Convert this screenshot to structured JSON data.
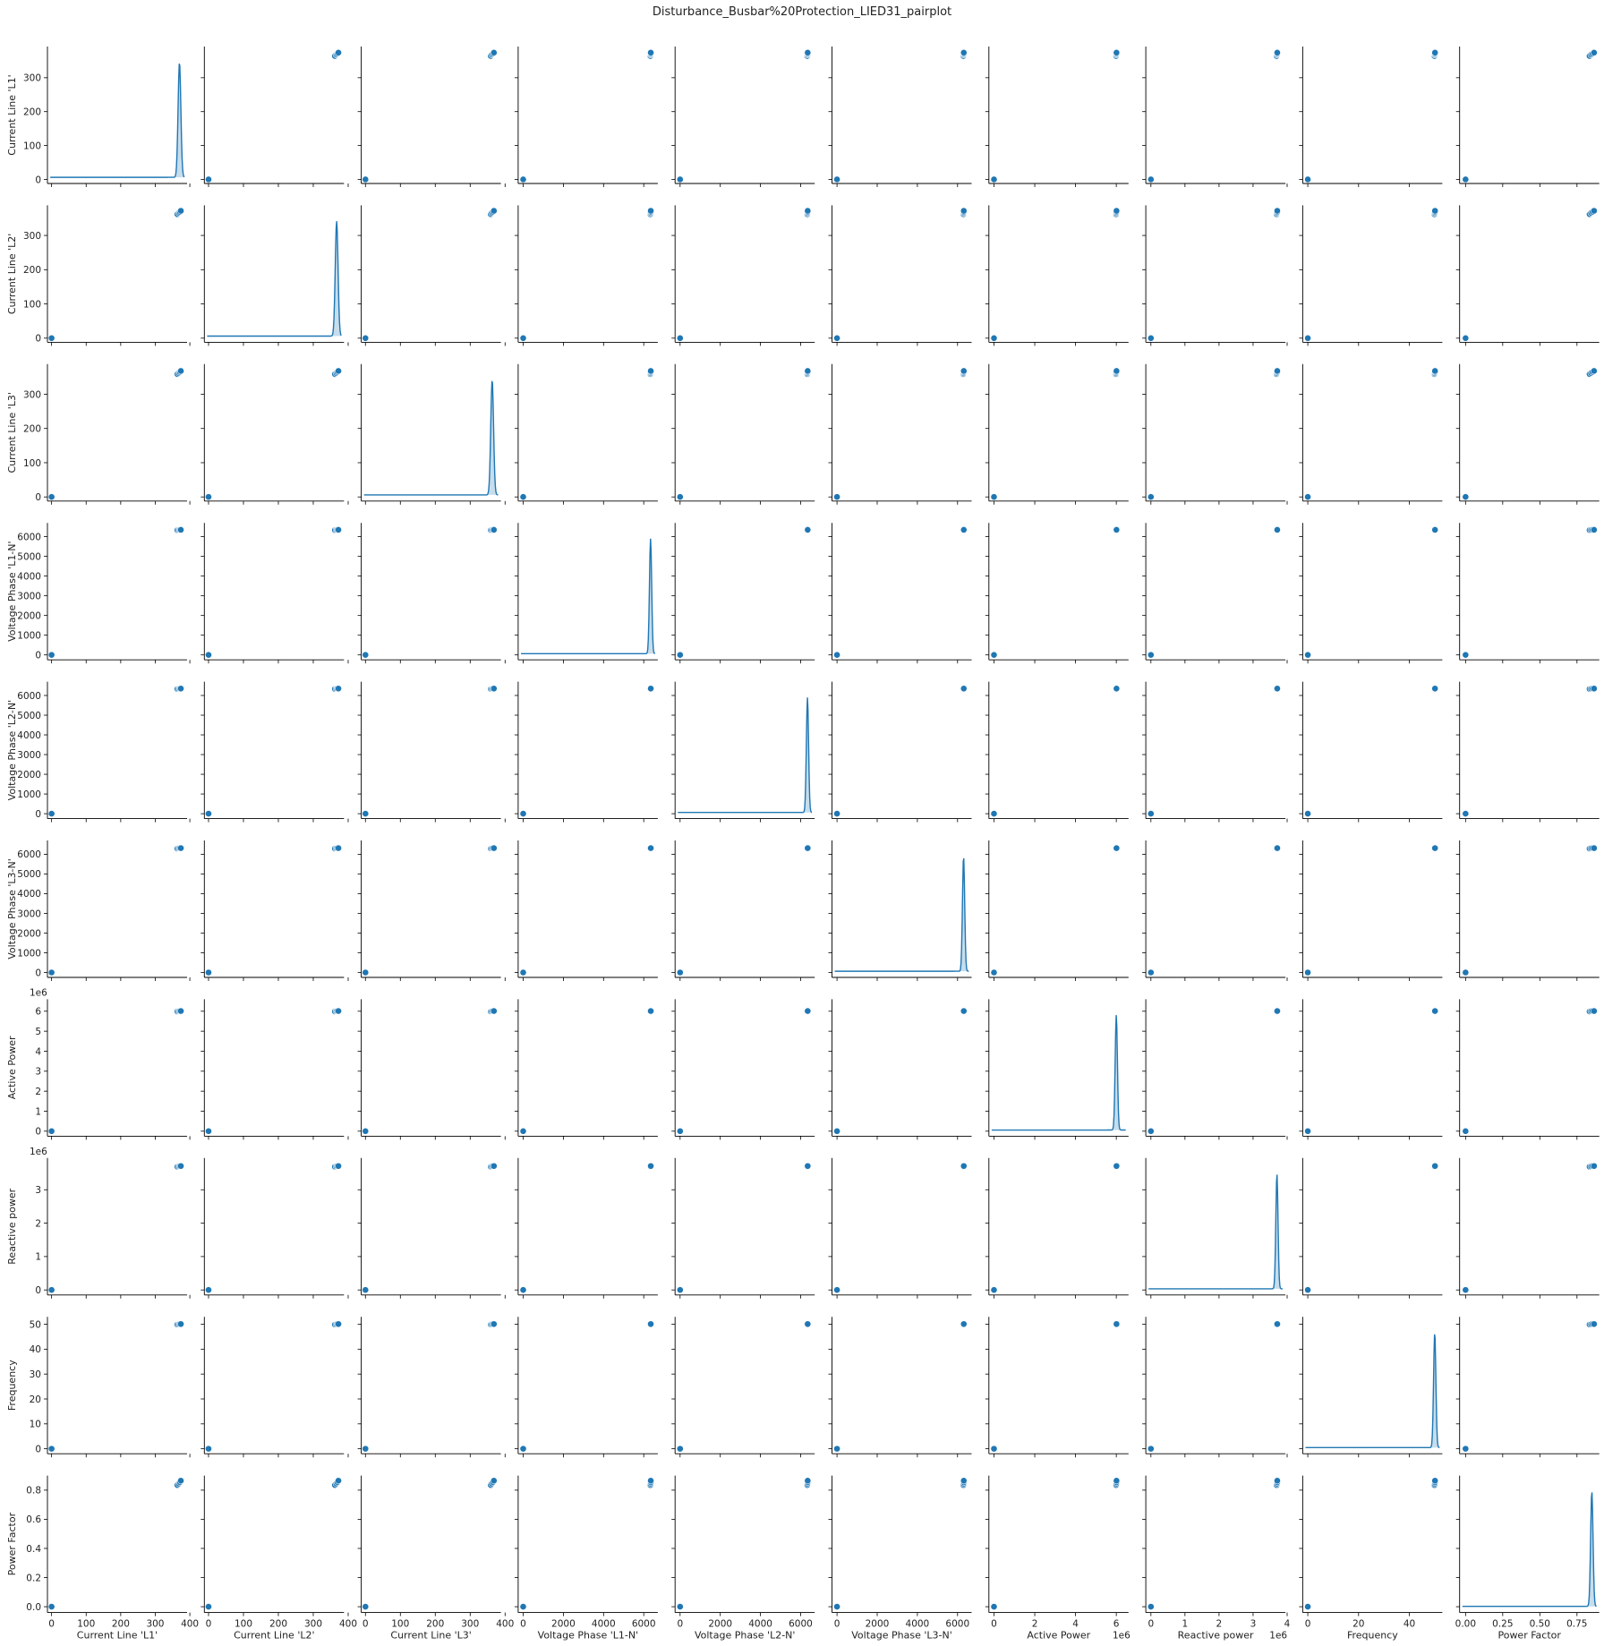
{
  "chart_data": {
    "type": "scatter",
    "subtype": "pairplot",
    "title": "Disturbance_Busbar%20Protection_LIED31_pairplot",
    "diagonal": "kde",
    "grid": false,
    "color": "#1f77b4",
    "variables": [
      {
        "name": "Current Line 'L1'",
        "range": [
          -12,
          392
        ],
        "ticks": [
          0,
          100,
          200,
          300,
          400
        ],
        "tick_labels": [
          "0",
          "100",
          "200",
          "300",
          "400"
        ],
        "y_ticks": [
          0,
          100,
          200,
          300
        ],
        "y_tick_labels": [
          "0",
          "100",
          "200",
          "300"
        ],
        "offset_label": "",
        "points": [
          0,
          364,
          368,
          371,
          374
        ],
        "kde_peak": 370,
        "kde_sd": 4
      },
      {
        "name": "Current Line 'L2'",
        "range": [
          -12,
          388
        ],
        "ticks": [
          0,
          100,
          200,
          300,
          400
        ],
        "tick_labels": [
          "0",
          "100",
          "200",
          "300",
          "400"
        ],
        "y_ticks": [
          0,
          100,
          200,
          300
        ],
        "y_tick_labels": [
          "0",
          "100",
          "200",
          "300"
        ],
        "offset_label": "",
        "points": [
          0,
          362,
          366,
          369,
          372
        ],
        "kde_peak": 367,
        "kde_sd": 4
      },
      {
        "name": "Current Line 'L3'",
        "range": [
          -12,
          388
        ],
        "ticks": [
          0,
          100,
          200,
          300,
          400
        ],
        "tick_labels": [
          "0",
          "100",
          "200",
          "300",
          "400"
        ],
        "y_ticks": [
          0,
          100,
          200,
          300
        ],
        "y_tick_labels": [
          "0",
          "100",
          "200",
          "300"
        ],
        "offset_label": "",
        "points": [
          0,
          359,
          362,
          365,
          368
        ],
        "kde_peak": 363,
        "kde_sd": 4
      },
      {
        "name": "Voltage Phase 'L1-N'",
        "range": [
          -250,
          6700
        ],
        "ticks": [
          0,
          2000,
          4000,
          6000
        ],
        "tick_labels": [
          "0",
          "2000",
          "4000",
          "6000"
        ],
        "y_ticks": [
          0,
          1000,
          2000,
          3000,
          4000,
          5000,
          6000
        ],
        "y_tick_labels": [
          "0",
          "1000",
          "2000",
          "3000",
          "4000",
          "5000",
          "6000"
        ],
        "offset_label": "",
        "points": [
          0,
          6330,
          6340,
          6350
        ],
        "kde_peak": 6340,
        "kde_sd": 55
      },
      {
        "name": "Voltage Phase 'L2-N'",
        "range": [
          -250,
          6700
        ],
        "ticks": [
          0,
          2000,
          4000,
          6000
        ],
        "tick_labels": [
          "0",
          "2000",
          "4000",
          "6000"
        ],
        "y_ticks": [
          0,
          1000,
          2000,
          3000,
          4000,
          5000,
          6000
        ],
        "y_tick_labels": [
          "0",
          "1000",
          "2000",
          "3000",
          "4000",
          "5000",
          "6000"
        ],
        "offset_label": "",
        "points": [
          0,
          6330,
          6340,
          6350
        ],
        "kde_peak": 6340,
        "kde_sd": 55
      },
      {
        "name": "Voltage Phase 'L3-N'",
        "range": [
          -250,
          6700
        ],
        "ticks": [
          0,
          2000,
          4000,
          6000
        ],
        "tick_labels": [
          "0",
          "2000",
          "4000",
          "6000"
        ],
        "y_ticks": [
          0,
          1000,
          2000,
          3000,
          4000,
          5000,
          6000
        ],
        "y_tick_labels": [
          "0",
          "1000",
          "2000",
          "3000",
          "4000",
          "5000",
          "6000"
        ],
        "offset_label": "",
        "points": [
          0,
          6290,
          6300,
          6310
        ],
        "kde_peak": 6300,
        "kde_sd": 55
      },
      {
        "name": "Active Power",
        "range": [
          -250000,
          6600000
        ],
        "ticks": [
          0,
          2000000,
          4000000,
          6000000
        ],
        "tick_labels": [
          "0",
          "2",
          "4",
          "6"
        ],
        "y_ticks": [
          0,
          1000000,
          2000000,
          3000000,
          4000000,
          5000000,
          6000000
        ],
        "y_tick_labels": [
          "0",
          "1",
          "2",
          "3",
          "4",
          "5",
          "6"
        ],
        "offset_label": "1e6",
        "points": [
          0,
          5990000,
          6000000,
          6010000
        ],
        "kde_peak": 6000000,
        "kde_sd": 55000
      },
      {
        "name": "Reactive power",
        "range": [
          -150000,
          3950000
        ],
        "ticks": [
          0,
          1000000,
          2000000,
          3000000,
          4000000
        ],
        "tick_labels": [
          "0",
          "1",
          "2",
          "3",
          "4"
        ],
        "y_ticks": [
          0,
          1000000,
          2000000,
          3000000
        ],
        "y_tick_labels": [
          "0",
          "1",
          "2",
          "3"
        ],
        "offset_label": "1e6",
        "points": [
          0,
          3690000,
          3700000,
          3710000
        ],
        "kde_peak": 3700000,
        "kde_sd": 32000
      },
      {
        "name": "Frequency",
        "range": [
          -2,
          53
        ],
        "ticks": [
          0,
          20,
          40
        ],
        "tick_labels": [
          "0",
          "20",
          "40"
        ],
        "y_ticks": [
          0,
          10,
          20,
          30,
          40,
          50
        ],
        "y_tick_labels": [
          "0",
          "10",
          "20",
          "30",
          "40",
          "50"
        ],
        "offset_label": "",
        "points": [
          0,
          49.9,
          50.0,
          50.1
        ],
        "kde_peak": 50,
        "kde_sd": 0.45
      },
      {
        "name": "Power Factor",
        "range": [
          -0.04,
          0.9
        ],
        "ticks": [
          0,
          0.25,
          0.5,
          0.75
        ],
        "tick_labels": [
          "0.00",
          "0.25",
          "0.50",
          "0.75"
        ],
        "y_ticks": [
          0,
          0.2,
          0.4,
          0.6,
          0.8
        ],
        "y_tick_labels": [
          "0.0",
          "0.2",
          "0.4",
          "0.6",
          "0.8"
        ],
        "offset_label": "",
        "points": [
          0,
          0.835,
          0.845,
          0.855,
          0.865
        ],
        "kde_peak": 0.85,
        "kde_sd": 0.008
      }
    ]
  }
}
